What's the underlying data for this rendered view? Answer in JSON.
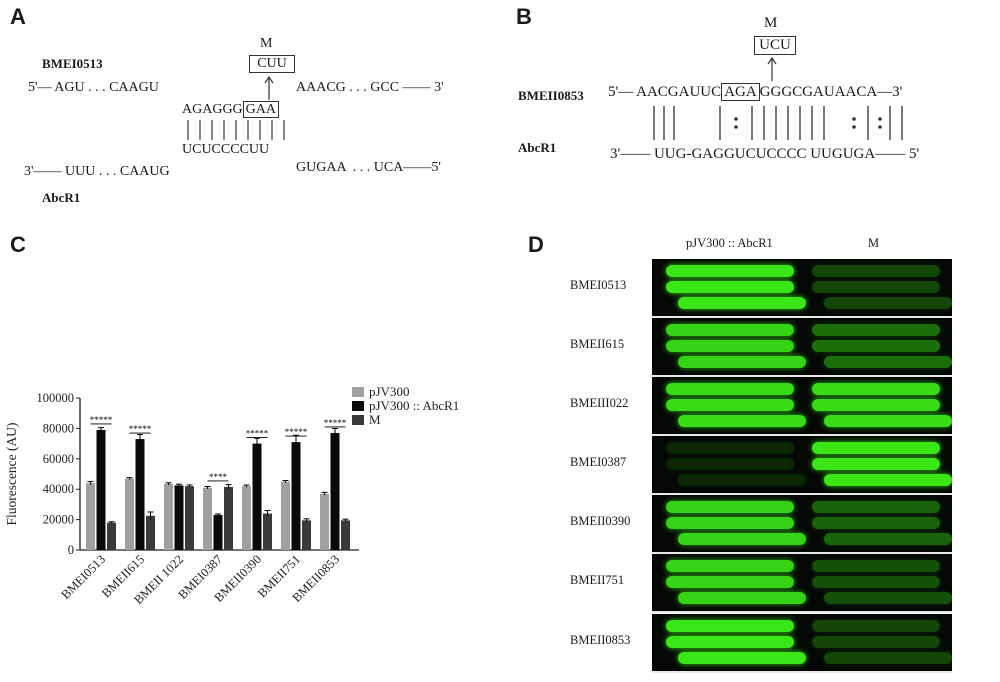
{
  "panels": {
    "a": {
      "letter": "A",
      "gene_name": "BMEI0513",
      "mut_label": "M",
      "mut_seq": "CUU",
      "top_left": "5'— AGU . . . CAAGU",
      "top_right": "AAACG . . . GCC —— 3'",
      "pair_top_a": "AGAGGG",
      "pair_top_b": "GAA",
      "pair_bottom": "UCUCCCCUU",
      "bottom_left": "3'—— UUU . . . CAAUG",
      "bottom_right": "GUGAA  . . . UCA——5'",
      "srna_name": "AbcR1"
    },
    "b": {
      "letter": "B",
      "gene_name": "BMEII0853",
      "mut_label": "M",
      "mut_seq": "UCU",
      "top_prefix": "5'—",
      "top_a": "AACGAUUC",
      "top_b": "AGA",
      "top_c": "GGGCGAUAACA",
      "top_suffix": "—3'",
      "srna_name": "AbcR1",
      "bottom": "3'—— UUG-GAGGUCUCCCC UUGUGA—— 5'"
    },
    "c": {
      "letter": "C"
    },
    "d": {
      "letter": "D",
      "col_headers": [
        "pJV300 :: AbcR1",
        "M"
      ],
      "rows": [
        "BMEI0513",
        "BMEII615",
        "BMEIII022",
        "BMEI0387",
        "BMEII0390",
        "BMEII751",
        "BMEII0853"
      ],
      "left_level": [
        0.95,
        0.85,
        0.9,
        0.0,
        0.85,
        0.85,
        0.95
      ],
      "right_level": [
        0.15,
        0.35,
        0.9,
        0.95,
        0.3,
        0.2,
        0.15
      ]
    }
  },
  "chart_data": {
    "type": "bar",
    "categories": [
      "BMEI0513",
      "BMEII615",
      "BMEII 1022",
      "BMEI0387",
      "BMEII0390",
      "BMEII751",
      "BMEII0853"
    ],
    "series": [
      {
        "name": "pJV300",
        "values": [
          44000,
          47000,
          43500,
          41000,
          42000,
          45000,
          37000
        ],
        "errors": [
          1000,
          600,
          700,
          800,
          700,
          700,
          900
        ]
      },
      {
        "name": "pJV300 :: AbcR1",
        "values": [
          79000,
          73000,
          42500,
          23000,
          70000,
          71000,
          77000
        ],
        "errors": [
          1500,
          3000,
          800,
          700,
          3500,
          4500,
          3000
        ]
      },
      {
        "name": "M",
        "values": [
          18000,
          22500,
          42000,
          41500,
          24000,
          19500,
          19500
        ],
        "errors": [
          600,
          2500,
          800,
          1500,
          2000,
          1000,
          800
        ]
      }
    ],
    "ylabel": "Fluorescence (AU)",
    "yticks": [
      "0",
      "20000",
      "40000",
      "60000",
      "80000",
      "100000"
    ],
    "ylim": [
      0,
      100000
    ],
    "significance": [
      "*****",
      "*****",
      "",
      "****",
      "*****",
      "*****",
      "*****"
    ],
    "colors": [
      "#a0a0a0",
      "#0a0a0a",
      "#3a3a3a"
    ],
    "legend": "top-right"
  }
}
